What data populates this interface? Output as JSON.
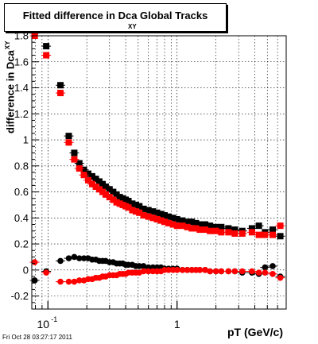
{
  "title": {
    "main": "Fitted difference in Dca Global Tracks",
    "subscript": "XY"
  },
  "footer": {
    "timestamp": "Fri Oct 28 03:27:17 2011"
  },
  "chart_data": {
    "type": "scatter",
    "title": "Fitted difference in Dca Global Tracks",
    "xlabel": "pT (GeV/c)",
    "ylabel": "difference in Dca",
    "ylabel_subscript": "XY",
    "x_scale": "log",
    "xlim": [
      0.075,
      7.0
    ],
    "ylim": [
      -0.3,
      1.8
    ],
    "grid": true,
    "legend": "none",
    "x_ticks": [
      {
        "value": 0.1,
        "label": "10",
        "exponent": "-1"
      },
      {
        "value": 1,
        "label": "1",
        "exponent": ""
      }
    ],
    "y_ticks": [
      {
        "value": -0.2,
        "label": "-0.2"
      },
      {
        "value": 0,
        "label": "0"
      },
      {
        "value": 0.2,
        "label": "0.2"
      },
      {
        "value": 0.4,
        "label": "0.4"
      },
      {
        "value": 0.6,
        "label": "0.6"
      },
      {
        "value": 0.8,
        "label": "0.8"
      },
      {
        "value": 1,
        "label": "1"
      },
      {
        "value": 1.2,
        "label": "1.2"
      },
      {
        "value": 1.4,
        "label": "1.4"
      },
      {
        "value": 1.6,
        "label": "1.6"
      },
      {
        "value": 1.8,
        "label": "1.8"
      }
    ],
    "series": [
      {
        "marker": "square",
        "color": "#000000",
        "points": [
          [
            0.079,
            1.82
          ],
          [
            0.097,
            1.72
          ],
          [
            0.125,
            1.42
          ],
          [
            0.145,
            1.03
          ],
          [
            0.16,
            0.9
          ],
          [
            0.175,
            0.82
          ],
          [
            0.19,
            0.77
          ],
          [
            0.205,
            0.74
          ],
          [
            0.22,
            0.72
          ],
          [
            0.235,
            0.7
          ],
          [
            0.25,
            0.68
          ],
          [
            0.265,
            0.66
          ],
          [
            0.28,
            0.64
          ],
          [
            0.3,
            0.62
          ],
          [
            0.32,
            0.6
          ],
          [
            0.34,
            0.58
          ],
          [
            0.36,
            0.56
          ],
          [
            0.38,
            0.55
          ],
          [
            0.4,
            0.54
          ],
          [
            0.42,
            0.53
          ],
          [
            0.45,
            0.51
          ],
          [
            0.48,
            0.5
          ],
          [
            0.51,
            0.49
          ],
          [
            0.55,
            0.47
          ],
          [
            0.6,
            0.46
          ],
          [
            0.65,
            0.45
          ],
          [
            0.7,
            0.44
          ],
          [
            0.75,
            0.43
          ],
          [
            0.8,
            0.42
          ],
          [
            0.86,
            0.41
          ],
          [
            0.93,
            0.4
          ],
          [
            1.0,
            0.39
          ],
          [
            1.1,
            0.38
          ],
          [
            1.2,
            0.37
          ],
          [
            1.3,
            0.37
          ],
          [
            1.4,
            0.36
          ],
          [
            1.5,
            0.35
          ],
          [
            1.65,
            0.35
          ],
          [
            1.8,
            0.34
          ],
          [
            2.0,
            0.33
          ],
          [
            2.2,
            0.33
          ],
          [
            2.5,
            0.32
          ],
          [
            2.8,
            0.31
          ],
          [
            3.2,
            0.3
          ],
          [
            3.8,
            0.32
          ],
          [
            4.3,
            0.34
          ],
          [
            4.8,
            0.29
          ],
          [
            5.5,
            0.31
          ],
          [
            6.3,
            0.26
          ]
        ]
      },
      {
        "marker": "square",
        "color": "#ff0000",
        "points": [
          [
            0.079,
            1.8
          ],
          [
            0.097,
            1.65
          ],
          [
            0.125,
            1.36
          ],
          [
            0.145,
            0.98
          ],
          [
            0.16,
            0.85
          ],
          [
            0.175,
            0.78
          ],
          [
            0.19,
            0.73
          ],
          [
            0.205,
            0.69
          ],
          [
            0.22,
            0.66
          ],
          [
            0.235,
            0.64
          ],
          [
            0.25,
            0.62
          ],
          [
            0.265,
            0.6
          ],
          [
            0.28,
            0.58
          ],
          [
            0.3,
            0.56
          ],
          [
            0.32,
            0.54
          ],
          [
            0.34,
            0.52
          ],
          [
            0.36,
            0.51
          ],
          [
            0.38,
            0.5
          ],
          [
            0.4,
            0.49
          ],
          [
            0.42,
            0.48
          ],
          [
            0.45,
            0.46
          ],
          [
            0.48,
            0.45
          ],
          [
            0.51,
            0.44
          ],
          [
            0.55,
            0.42
          ],
          [
            0.6,
            0.41
          ],
          [
            0.65,
            0.4
          ],
          [
            0.7,
            0.39
          ],
          [
            0.75,
            0.38
          ],
          [
            0.8,
            0.37
          ],
          [
            0.86,
            0.36
          ],
          [
            0.93,
            0.35
          ],
          [
            1.0,
            0.34
          ],
          [
            1.1,
            0.34
          ],
          [
            1.2,
            0.33
          ],
          [
            1.3,
            0.32
          ],
          [
            1.4,
            0.32
          ],
          [
            1.5,
            0.31
          ],
          [
            1.65,
            0.31
          ],
          [
            1.8,
            0.3
          ],
          [
            2.0,
            0.3
          ],
          [
            2.2,
            0.29
          ],
          [
            2.5,
            0.29
          ],
          [
            2.8,
            0.28
          ],
          [
            3.2,
            0.28
          ],
          [
            3.8,
            0.29
          ],
          [
            4.3,
            0.27
          ],
          [
            4.8,
            0.27
          ],
          [
            5.5,
            0.27
          ],
          [
            6.3,
            0.34
          ]
        ]
      },
      {
        "marker": "circle",
        "color": "#000000",
        "points": [
          [
            0.079,
            -0.08
          ],
          [
            0.097,
            -0.01
          ],
          [
            0.125,
            0.07
          ],
          [
            0.145,
            0.09
          ],
          [
            0.16,
            0.1
          ],
          [
            0.175,
            0.09
          ],
          [
            0.19,
            0.09
          ],
          [
            0.205,
            0.09
          ],
          [
            0.22,
            0.08
          ],
          [
            0.235,
            0.08
          ],
          [
            0.25,
            0.07
          ],
          [
            0.265,
            0.07
          ],
          [
            0.28,
            0.07
          ],
          [
            0.3,
            0.06
          ],
          [
            0.32,
            0.06
          ],
          [
            0.34,
            0.05
          ],
          [
            0.36,
            0.05
          ],
          [
            0.38,
            0.05
          ],
          [
            0.4,
            0.04
          ],
          [
            0.42,
            0.04
          ],
          [
            0.45,
            0.04
          ],
          [
            0.48,
            0.03
          ],
          [
            0.51,
            0.03
          ],
          [
            0.55,
            0.03
          ],
          [
            0.6,
            0.02
          ],
          [
            0.65,
            0.02
          ],
          [
            0.7,
            0.02
          ],
          [
            0.75,
            0.02
          ],
          [
            0.8,
            0.01
          ],
          [
            0.86,
            0.01
          ],
          [
            0.93,
            0.01
          ],
          [
            1.0,
            0.01
          ],
          [
            1.1,
            0.0
          ],
          [
            1.2,
            0.0
          ],
          [
            1.3,
            0.0
          ],
          [
            1.4,
            0.0
          ],
          [
            1.5,
            0.0
          ],
          [
            1.65,
            0.0
          ],
          [
            1.8,
            -0.01
          ],
          [
            2.0,
            -0.01
          ],
          [
            2.2,
            -0.01
          ],
          [
            2.5,
            -0.01
          ],
          [
            2.8,
            -0.01
          ],
          [
            3.2,
            -0.02
          ],
          [
            3.8,
            -0.02
          ],
          [
            4.3,
            -0.03
          ],
          [
            4.8,
            0.02
          ],
          [
            5.5,
            0.03
          ],
          [
            6.3,
            -0.05
          ]
        ]
      },
      {
        "marker": "circle",
        "color": "#ff0000",
        "points": [
          [
            0.079,
            0.06
          ],
          [
            0.097,
            -0.02
          ],
          [
            0.125,
            -0.09
          ],
          [
            0.145,
            -0.09
          ],
          [
            0.16,
            -0.09
          ],
          [
            0.175,
            -0.08
          ],
          [
            0.19,
            -0.08
          ],
          [
            0.205,
            -0.07
          ],
          [
            0.22,
            -0.07
          ],
          [
            0.235,
            -0.06
          ],
          [
            0.25,
            -0.06
          ],
          [
            0.265,
            -0.05
          ],
          [
            0.28,
            -0.05
          ],
          [
            0.3,
            -0.04
          ],
          [
            0.32,
            -0.04
          ],
          [
            0.34,
            -0.04
          ],
          [
            0.36,
            -0.03
          ],
          [
            0.38,
            -0.03
          ],
          [
            0.4,
            -0.03
          ],
          [
            0.42,
            -0.02
          ],
          [
            0.45,
            -0.02
          ],
          [
            0.48,
            -0.02
          ],
          [
            0.51,
            -0.02
          ],
          [
            0.55,
            -0.01
          ],
          [
            0.6,
            -0.01
          ],
          [
            0.65,
            -0.01
          ],
          [
            0.7,
            -0.01
          ],
          [
            0.75,
            -0.01
          ],
          [
            0.8,
            0.0
          ],
          [
            0.86,
            0.0
          ],
          [
            0.93,
            0.0
          ],
          [
            1.0,
            0.0
          ],
          [
            1.1,
            0.0
          ],
          [
            1.2,
            0.0
          ],
          [
            1.3,
            0.0
          ],
          [
            1.4,
            0.0
          ],
          [
            1.5,
            0.0
          ],
          [
            1.65,
            0.0
          ],
          [
            1.8,
            -0.01
          ],
          [
            2.0,
            -0.01
          ],
          [
            2.2,
            -0.01
          ],
          [
            2.5,
            -0.01
          ],
          [
            2.8,
            -0.01
          ],
          [
            3.2,
            -0.01
          ],
          [
            3.8,
            -0.01
          ],
          [
            4.3,
            -0.02
          ],
          [
            4.8,
            -0.02
          ],
          [
            5.5,
            -0.03
          ],
          [
            6.3,
            -0.06
          ]
        ]
      }
    ]
  }
}
